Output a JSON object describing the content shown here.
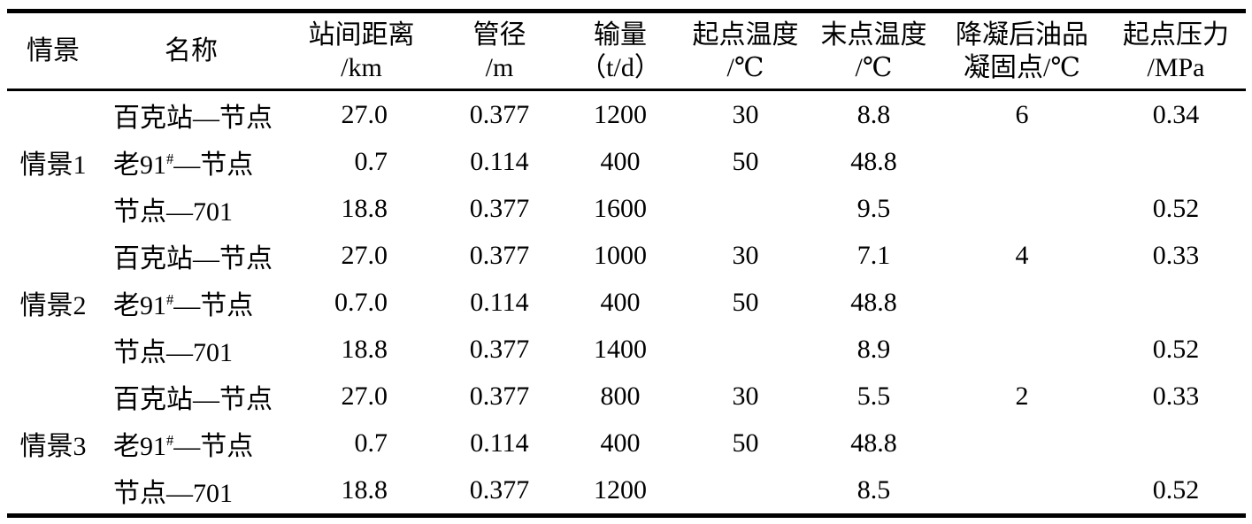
{
  "page": {
    "background": "#ffffff",
    "text_color": "#000000",
    "rule_color": "#000000"
  },
  "table": {
    "columns": [
      {
        "id": "scenario",
        "line1": "情景",
        "line2": ""
      },
      {
        "id": "name",
        "line1": "名称",
        "line2": ""
      },
      {
        "id": "distance",
        "line1": "站间距离",
        "line2": "/km"
      },
      {
        "id": "diameter",
        "line1": "管径",
        "line2": "/m"
      },
      {
        "id": "throughput",
        "line1": "输量",
        "line2": "（t/d）"
      },
      {
        "id": "start_temp",
        "line1": "起点温度",
        "line2": "/℃"
      },
      {
        "id": "end_temp",
        "line1": "末点温度",
        "line2": "/℃"
      },
      {
        "id": "pour_point",
        "line1": "降凝后油品",
        "line2": "凝固点/℃"
      },
      {
        "id": "start_pressure",
        "line1": "起点压力",
        "line2": "/MPa"
      }
    ],
    "groups": [
      {
        "scenario": "情景1",
        "rows": [
          {
            "name_pre": "百克站—节点",
            "name_sup": "",
            "name_post": "",
            "distance": "27.0",
            "diameter": "0.377",
            "throughput": "1200",
            "start_temp": "30",
            "end_temp": "8.8",
            "pour_point": "6",
            "start_pressure": "0.34"
          },
          {
            "name_pre": "老91",
            "name_sup": "#",
            "name_post": "—节点",
            "distance": "0.7",
            "diameter": "0.114",
            "throughput": "400",
            "start_temp": "50",
            "end_temp": "48.8",
            "pour_point": "",
            "start_pressure": ""
          },
          {
            "name_pre": "节点—701",
            "name_sup": "",
            "name_post": "",
            "distance": "18.8",
            "diameter": "0.377",
            "throughput": "1600",
            "start_temp": "",
            "end_temp": "9.5",
            "pour_point": "",
            "start_pressure": "0.52"
          }
        ]
      },
      {
        "scenario": "情景2",
        "rows": [
          {
            "name_pre": "百克站—节点",
            "name_sup": "",
            "name_post": "",
            "distance": "27.0",
            "diameter": "0.377",
            "throughput": "1000",
            "start_temp": "30",
            "end_temp": "7.1",
            "pour_point": "4",
            "start_pressure": "0.33"
          },
          {
            "name_pre": "老91",
            "name_sup": "#",
            "name_post": "—节点",
            "distance": "0.7.0",
            "diameter": "0.114",
            "throughput": "400",
            "start_temp": "50",
            "end_temp": "48.8",
            "pour_point": "",
            "start_pressure": ""
          },
          {
            "name_pre": "节点—701",
            "name_sup": "",
            "name_post": "",
            "distance": "18.8",
            "diameter": "0.377",
            "throughput": "1400",
            "start_temp": "",
            "end_temp": "8.9",
            "pour_point": "",
            "start_pressure": "0.52"
          }
        ]
      },
      {
        "scenario": "情景3",
        "rows": [
          {
            "name_pre": "百克站—节点",
            "name_sup": "",
            "name_post": "",
            "distance": "27.0",
            "diameter": "0.377",
            "throughput": "800",
            "start_temp": "30",
            "end_temp": "5.5",
            "pour_point": "2",
            "start_pressure": "0.33"
          },
          {
            "name_pre": "老91",
            "name_sup": "#",
            "name_post": "—节点",
            "distance": "0.7",
            "diameter": "0.114",
            "throughput": "400",
            "start_temp": "50",
            "end_temp": "48.8",
            "pour_point": "",
            "start_pressure": ""
          },
          {
            "name_pre": "节点—701",
            "name_sup": "",
            "name_post": "",
            "distance": "18.8",
            "diameter": "0.377",
            "throughput": "1200",
            "start_temp": "",
            "end_temp": "8.5",
            "pour_point": "",
            "start_pressure": "0.52"
          }
        ]
      }
    ]
  }
}
